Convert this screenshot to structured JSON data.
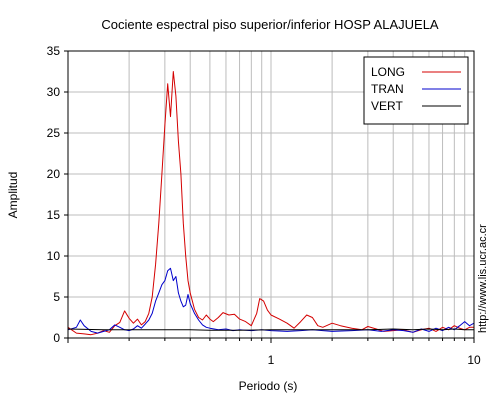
{
  "chart_data": {
    "type": "line",
    "title": "Cociente espectral piso superior/inferior  HOSP ALAJUELA",
    "xlabel": "Periodo (s)",
    "ylabel": "Amplitud",
    "x_scale": "log",
    "xlim": [
      0.1,
      10
    ],
    "ylim": [
      0,
      35
    ],
    "x_tick_labels": [
      "1",
      "10"
    ],
    "y_ticks": [
      0,
      5,
      10,
      15,
      20,
      25,
      30,
      35
    ],
    "grid": true,
    "legend_position": "top-right",
    "side_text": "http://www.lis.ucr.ac.cr",
    "series": [
      {
        "name": "LONG",
        "color": "#d40000",
        "points": [
          [
            0.1,
            1.3
          ],
          [
            0.11,
            0.6
          ],
          [
            0.12,
            0.5
          ],
          [
            0.13,
            0.4
          ],
          [
            0.14,
            0.6
          ],
          [
            0.15,
            0.9
          ],
          [
            0.16,
            0.7
          ],
          [
            0.17,
            1.5
          ],
          [
            0.18,
            1.9
          ],
          [
            0.19,
            3.3
          ],
          [
            0.2,
            2.4
          ],
          [
            0.21,
            1.8
          ],
          [
            0.22,
            2.3
          ],
          [
            0.23,
            1.6
          ],
          [
            0.24,
            2.0
          ],
          [
            0.25,
            3.0
          ],
          [
            0.26,
            5.0
          ],
          [
            0.27,
            9.0
          ],
          [
            0.28,
            14.0
          ],
          [
            0.29,
            20.0
          ],
          [
            0.3,
            26.0
          ],
          [
            0.31,
            31.0
          ],
          [
            0.32,
            27.0
          ],
          [
            0.33,
            32.5
          ],
          [
            0.34,
            29.5
          ],
          [
            0.35,
            24.0
          ],
          [
            0.36,
            20.0
          ],
          [
            0.37,
            14.0
          ],
          [
            0.38,
            10.0
          ],
          [
            0.39,
            7.0
          ],
          [
            0.4,
            5.5
          ],
          [
            0.42,
            3.5
          ],
          [
            0.44,
            2.5
          ],
          [
            0.46,
            2.2
          ],
          [
            0.48,
            2.8
          ],
          [
            0.5,
            2.3
          ],
          [
            0.52,
            2.0
          ],
          [
            0.55,
            2.5
          ],
          [
            0.58,
            3.1
          ],
          [
            0.62,
            2.8
          ],
          [
            0.66,
            2.9
          ],
          [
            0.7,
            2.3
          ],
          [
            0.75,
            2.0
          ],
          [
            0.8,
            1.5
          ],
          [
            0.85,
            3.0
          ],
          [
            0.88,
            4.8
          ],
          [
            0.92,
            4.5
          ],
          [
            0.96,
            3.4
          ],
          [
            1.0,
            2.8
          ],
          [
            1.1,
            2.3
          ],
          [
            1.2,
            1.8
          ],
          [
            1.3,
            1.2
          ],
          [
            1.4,
            2.0
          ],
          [
            1.5,
            2.8
          ],
          [
            1.6,
            2.5
          ],
          [
            1.7,
            1.5
          ],
          [
            1.8,
            1.3
          ],
          [
            2.0,
            1.8
          ],
          [
            2.2,
            1.5
          ],
          [
            2.5,
            1.2
          ],
          [
            2.8,
            1.0
          ],
          [
            3.0,
            1.4
          ],
          [
            3.3,
            1.1
          ],
          [
            3.6,
            0.8
          ],
          [
            4.0,
            0.9
          ],
          [
            4.5,
            1.0
          ],
          [
            5.0,
            0.7
          ],
          [
            5.5,
            1.0
          ],
          [
            6.0,
            1.2
          ],
          [
            6.5,
            0.8
          ],
          [
            7.0,
            1.3
          ],
          [
            7.5,
            1.0
          ],
          [
            8.0,
            1.5
          ],
          [
            8.5,
            1.2
          ],
          [
            9.0,
            1.0
          ],
          [
            9.5,
            1.3
          ],
          [
            10.0,
            1.3
          ]
        ]
      },
      {
        "name": "TRAN",
        "color": "#0000cc",
        "points": [
          [
            0.1,
            1.0
          ],
          [
            0.11,
            1.3
          ],
          [
            0.115,
            2.2
          ],
          [
            0.12,
            1.5
          ],
          [
            0.13,
            0.8
          ],
          [
            0.14,
            0.6
          ],
          [
            0.15,
            0.8
          ],
          [
            0.16,
            1.0
          ],
          [
            0.17,
            1.6
          ],
          [
            0.18,
            1.3
          ],
          [
            0.19,
            1.0
          ],
          [
            0.2,
            0.9
          ],
          [
            0.21,
            1.1
          ],
          [
            0.22,
            1.5
          ],
          [
            0.23,
            1.2
          ],
          [
            0.24,
            1.7
          ],
          [
            0.25,
            2.2
          ],
          [
            0.26,
            3.0
          ],
          [
            0.27,
            4.5
          ],
          [
            0.28,
            5.5
          ],
          [
            0.29,
            6.5
          ],
          [
            0.3,
            7.0
          ],
          [
            0.31,
            8.2
          ],
          [
            0.32,
            8.5
          ],
          [
            0.33,
            7.0
          ],
          [
            0.34,
            7.5
          ],
          [
            0.35,
            5.5
          ],
          [
            0.36,
            4.5
          ],
          [
            0.37,
            3.8
          ],
          [
            0.38,
            4.0
          ],
          [
            0.39,
            5.3
          ],
          [
            0.4,
            4.2
          ],
          [
            0.42,
            3.0
          ],
          [
            0.44,
            2.2
          ],
          [
            0.46,
            1.6
          ],
          [
            0.48,
            1.3
          ],
          [
            0.5,
            1.2
          ],
          [
            0.55,
            1.0
          ],
          [
            0.6,
            1.1
          ],
          [
            0.65,
            0.9
          ],
          [
            0.7,
            1.0
          ],
          [
            0.8,
            0.9
          ],
          [
            0.9,
            1.0
          ],
          [
            1.0,
            0.9
          ],
          [
            1.2,
            0.8
          ],
          [
            1.4,
            0.9
          ],
          [
            1.6,
            1.0
          ],
          [
            1.8,
            0.9
          ],
          [
            2.0,
            0.8
          ],
          [
            2.5,
            0.9
          ],
          [
            3.0,
            1.0
          ],
          [
            3.5,
            0.8
          ],
          [
            4.0,
            1.0
          ],
          [
            4.5,
            0.9
          ],
          [
            5.0,
            0.7
          ],
          [
            5.5,
            1.1
          ],
          [
            6.0,
            0.8
          ],
          [
            6.5,
            1.2
          ],
          [
            7.0,
            0.9
          ],
          [
            7.5,
            1.3
          ],
          [
            8.0,
            1.0
          ],
          [
            8.5,
            1.5
          ],
          [
            9.0,
            2.0
          ],
          [
            9.5,
            1.5
          ],
          [
            10.0,
            1.8
          ]
        ]
      },
      {
        "name": "VERT",
        "color": "#000000",
        "points": [
          [
            0.1,
            1.1
          ],
          [
            0.15,
            1.0
          ],
          [
            0.2,
            1.0
          ],
          [
            0.3,
            1.0
          ],
          [
            0.4,
            1.0
          ],
          [
            0.5,
            0.95
          ],
          [
            0.7,
            0.95
          ],
          [
            1.0,
            1.0
          ],
          [
            1.5,
            1.0
          ],
          [
            2.0,
            1.0
          ],
          [
            3.0,
            1.0
          ],
          [
            4.0,
            1.1
          ],
          [
            5.0,
            1.0
          ],
          [
            6.0,
            1.1
          ],
          [
            7.0,
            1.0
          ],
          [
            8.0,
            1.1
          ],
          [
            9.0,
            1.0
          ],
          [
            10.0,
            1.0
          ]
        ]
      }
    ]
  }
}
